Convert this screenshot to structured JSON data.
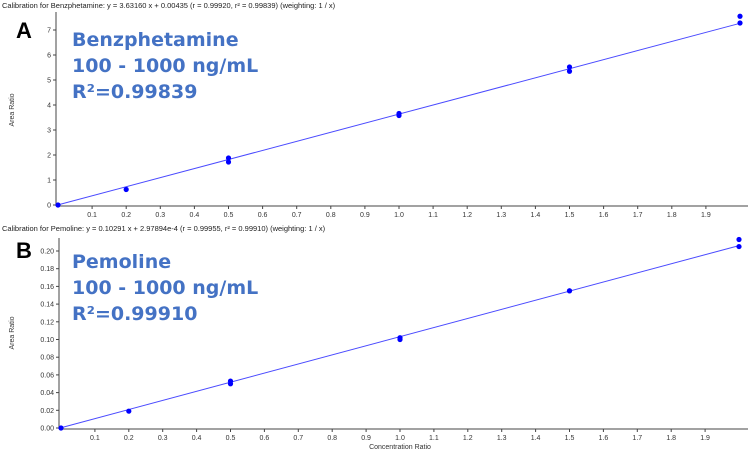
{
  "chart_data": [
    {
      "type": "scatter",
      "panel": "A",
      "title": "Calibration for Benzphetamine: y = 3.63160 x + 0.00435 (r = 0.99920, r² = 0.99839)  (weighting: 1 / x)",
      "annotation": [
        "Benzphetamine",
        "100 - 1000 ng/mL",
        "R²=0.99839"
      ],
      "xlabel": "",
      "ylabel": "Area Ratio",
      "xlim": [
        0,
        2.0
      ],
      "ylim": [
        0,
        7.6
      ],
      "xticks": [
        "0.1",
        "0.2",
        "0.3",
        "0.4",
        "0.5",
        "0.6",
        "0.7",
        "0.8",
        "0.9",
        "1.0",
        "1.1",
        "1.2",
        "1.3",
        "1.4",
        "1.5",
        "1.6",
        "1.7",
        "1.8",
        "1.9"
      ],
      "yticks": [
        "0",
        "1",
        "2",
        "3",
        "4",
        "5",
        "6",
        "7"
      ],
      "fit": {
        "slope": 3.6316,
        "intercept": 0.00435
      },
      "points": [
        [
          0,
          0
        ],
        [
          0.2,
          0.62
        ],
        [
          0.5,
          1.72
        ],
        [
          0.5,
          1.88
        ],
        [
          1.0,
          3.58
        ],
        [
          1.0,
          3.66
        ],
        [
          1.5,
          5.35
        ],
        [
          1.5,
          5.52
        ],
        [
          2.0,
          7.28
        ],
        [
          2.0,
          7.55
        ]
      ],
      "color": "#0000ff",
      "line_color": "#4a4aff"
    },
    {
      "type": "scatter",
      "panel": "B",
      "title": "Calibration for Pemoline: y = 0.10291 x + 2.97894e-4 (r = 0.99955, r² = 0.99910)  (weighting: 1 / x)",
      "annotation": [
        "Pemoline",
        "100 - 1000 ng/mL",
        "R²=0.99910"
      ],
      "xlabel": "Concentration Ratio",
      "ylabel": "Area Ratio",
      "xlim": [
        0,
        2.0
      ],
      "ylim": [
        0,
        0.21
      ],
      "xticks": [
        "0.1",
        "0.2",
        "0.3",
        "0.4",
        "0.5",
        "0.6",
        "0.7",
        "0.8",
        "0.9",
        "1.0",
        "1.1",
        "1.2",
        "1.3",
        "1.4",
        "1.5",
        "1.6",
        "1.7",
        "1.8",
        "1.9"
      ],
      "yticks": [
        "0.00",
        "0.02",
        "0.04",
        "0.06",
        "0.08",
        "0.10",
        "0.12",
        "0.14",
        "0.16",
        "0.18",
        "0.20"
      ],
      "fit": {
        "slope": 0.10291,
        "intercept": 0.000297894
      },
      "points": [
        [
          0,
          0
        ],
        [
          0.2,
          0.019
        ],
        [
          0.5,
          0.05
        ],
        [
          0.5,
          0.053
        ],
        [
          1.0,
          0.1
        ],
        [
          1.0,
          0.102
        ],
        [
          1.5,
          0.155
        ],
        [
          1.5,
          0.155
        ],
        [
          2.0,
          0.205
        ],
        [
          2.0,
          0.213
        ]
      ],
      "color": "#0000ff",
      "line_color": "#4a4aff"
    }
  ]
}
